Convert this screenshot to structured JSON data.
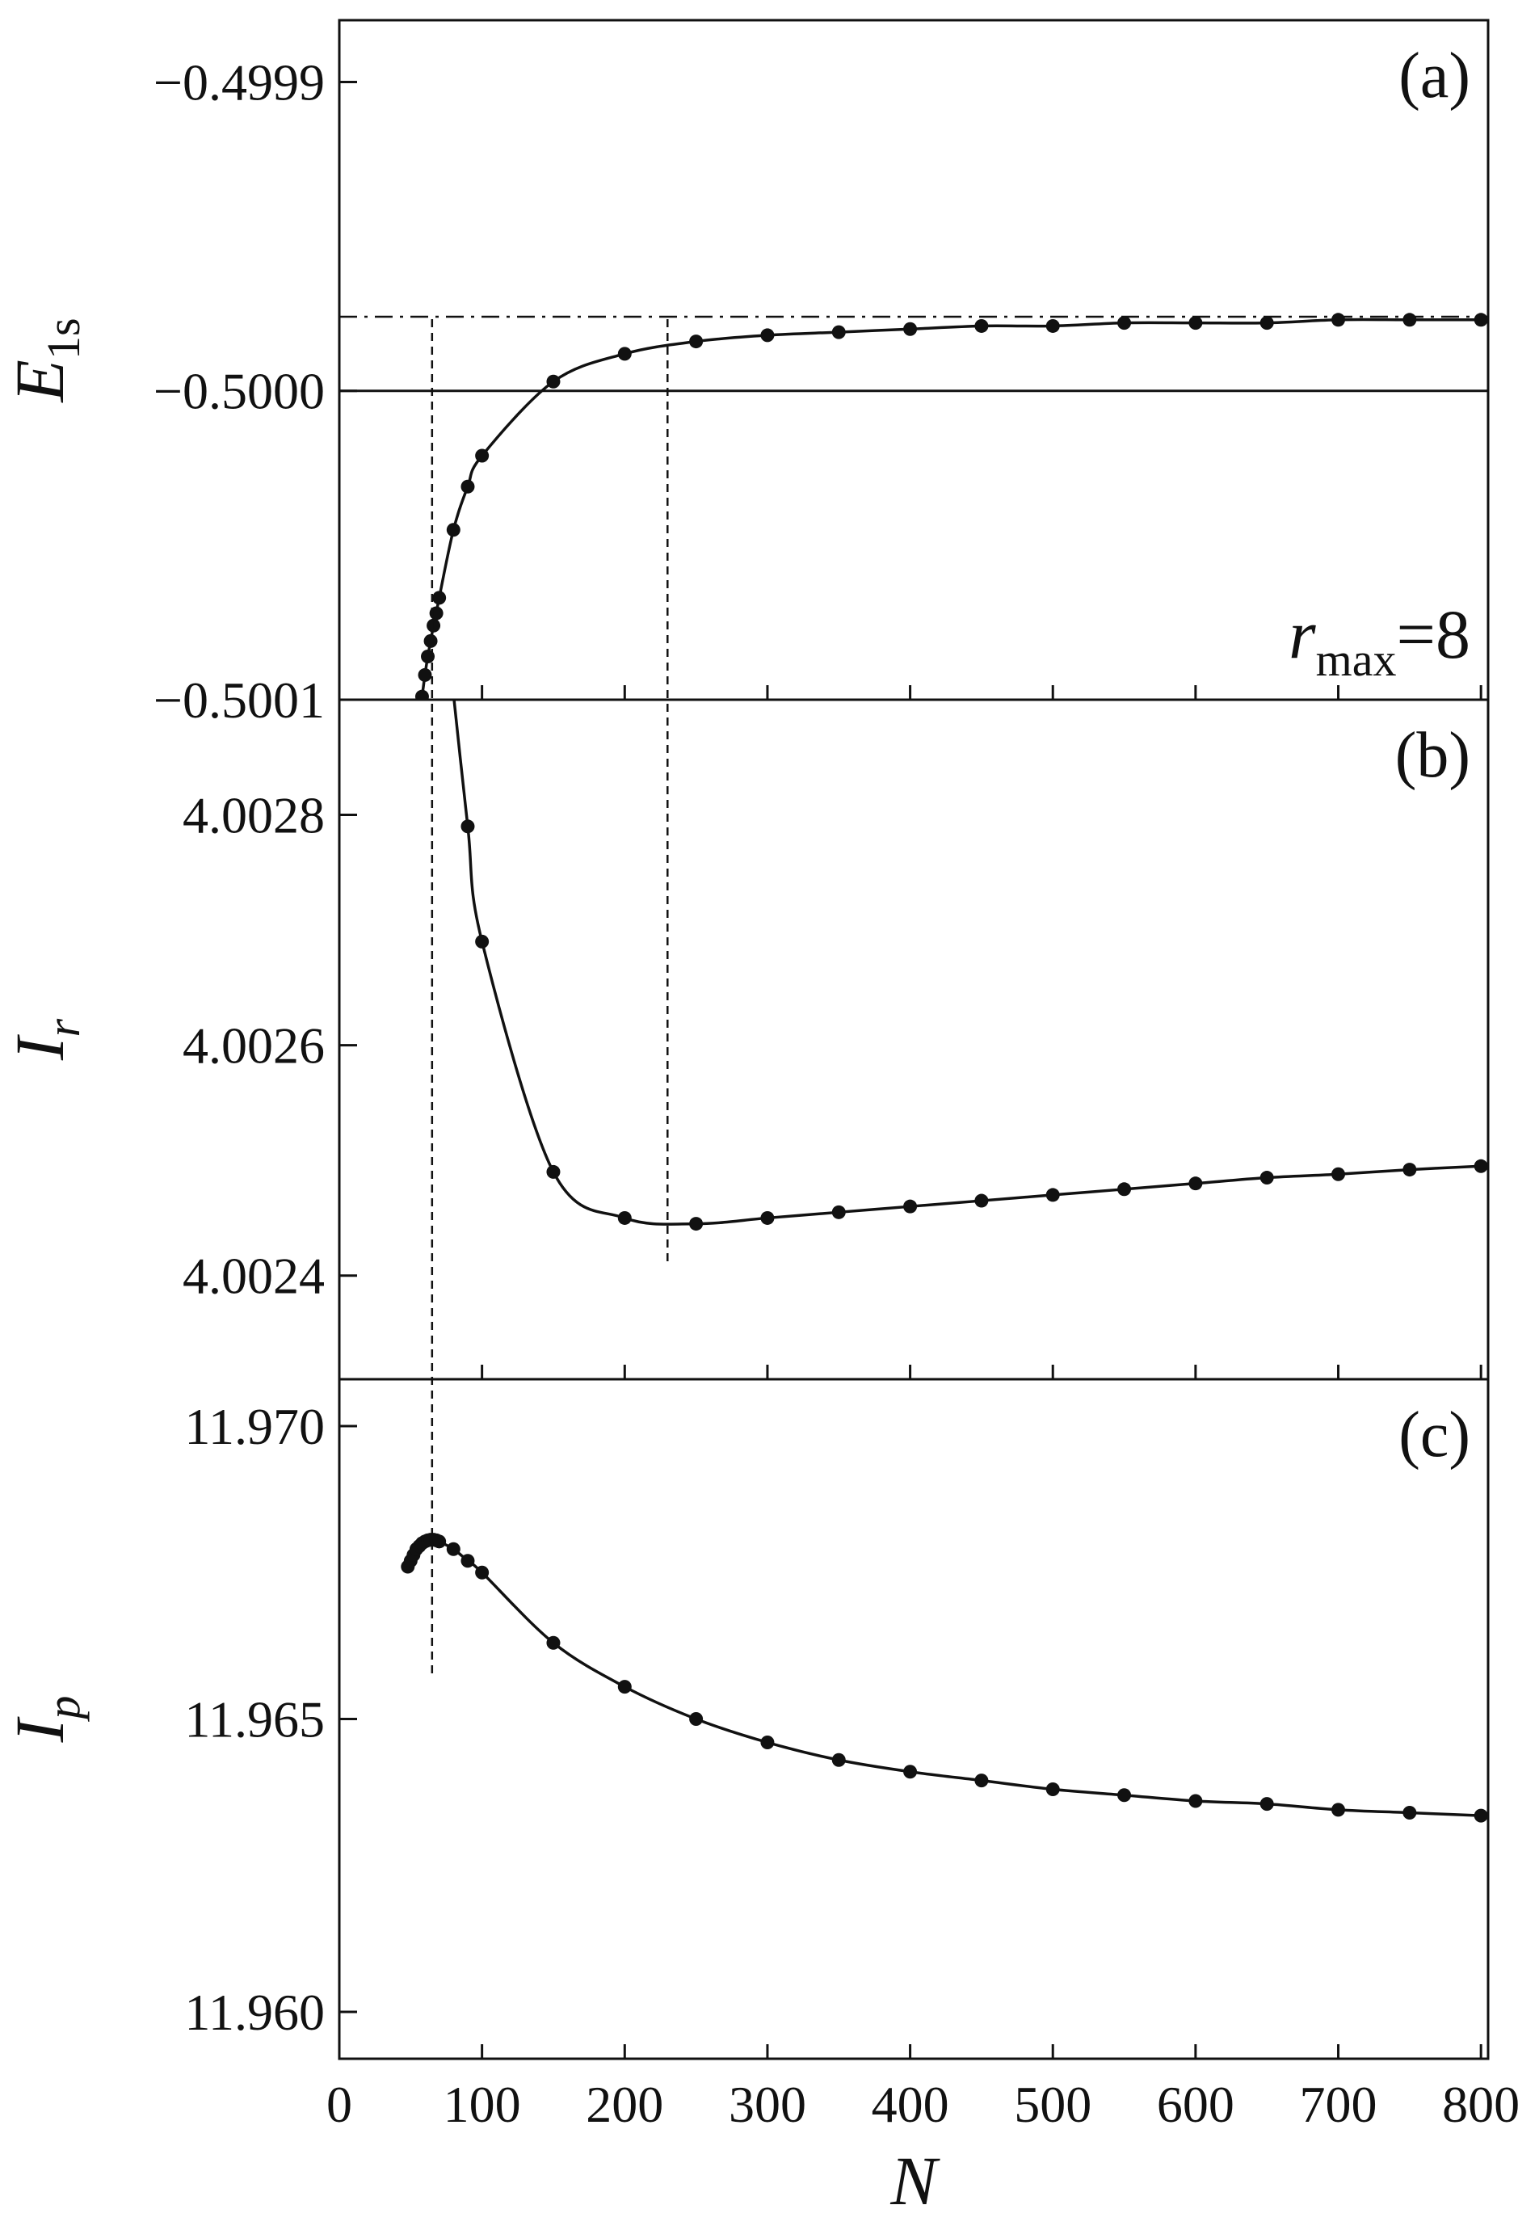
{
  "chart_data": {
    "type": "line",
    "shared_x_axis": {
      "label": "N",
      "xlim": [
        0,
        805
      ],
      "ticks": [
        0,
        100,
        200,
        300,
        400,
        500,
        600,
        700,
        800
      ]
    },
    "panels": [
      {
        "id": "a",
        "label": "(a)",
        "ylabel": "E",
        "ylabel_sub": "1s",
        "ylim": [
          -0.5001,
          -0.49988
        ],
        "yticks": [
          -0.4999,
          -0.5,
          -0.5001
        ],
        "ytick_labels": [
          "−0.4999",
          "−0.5000",
          "−0.5001"
        ],
        "annotation": {
          "main": "r",
          "sub": "max",
          "eq": "=8"
        },
        "reference_lines": [
          {
            "style": "solid",
            "y": -0.5
          },
          {
            "style": "dash-dot",
            "y": -0.499976
          }
        ],
        "series": [
          {
            "x": [
              58,
              60,
              62,
              64,
              66,
              68,
              70,
              80,
              90,
              100,
              150,
              200,
              250,
              300,
              350,
              400,
              450,
              500,
              550,
              600,
              650,
              700,
              750,
              800
            ],
            "y": [
              -0.500099,
              -0.500092,
              -0.500086,
              -0.500081,
              -0.500076,
              -0.500072,
              -0.500067,
              -0.500045,
              -0.500031,
              -0.500021,
              -0.499997,
              -0.499988,
              -0.499984,
              -0.499982,
              -0.499981,
              -0.49998,
              -0.499979,
              -0.499979,
              -0.499978,
              -0.499978,
              -0.499978,
              -0.499977,
              -0.499977,
              -0.499977
            ]
          }
        ]
      },
      {
        "id": "b",
        "label": "(b)",
        "ylabel": "I",
        "ylabel_sub": "r",
        "ylim": [
          4.00231,
          4.0029
        ],
        "yticks": [
          4.0028,
          4.0026,
          4.0024
        ],
        "ytick_labels": [
          "4.0028",
          "4.0026",
          "4.0024"
        ],
        "series": [
          {
            "x": [
              90,
              100,
              150,
              200,
              250,
              300,
              350,
              400,
              450,
              500,
              550,
              600,
              650,
              700,
              750,
              800
            ],
            "y": [
              4.00279,
              4.00269,
              4.00249,
              4.00245,
              4.002445,
              4.00245,
              4.002455,
              4.00246,
              4.002465,
              4.00247,
              4.002475,
              4.00248,
              4.002485,
              4.002488,
              4.002492,
              4.002495
            ]
          }
        ]
      },
      {
        "id": "c",
        "label": "(c)",
        "ylabel": "I",
        "ylabel_sub": "p",
        "ylim": [
          11.9592,
          11.9708
        ],
        "yticks": [
          11.97,
          11.965,
          11.96
        ],
        "ytick_labels": [
          "11.970",
          "11.965",
          "11.960"
        ],
        "series": [
          {
            "x": [
              48,
              50,
              52,
              54,
              56,
              58,
              60,
              62,
              64,
              66,
              68,
              70,
              80,
              90,
              100,
              150,
              200,
              250,
              300,
              350,
              400,
              450,
              500,
              550,
              600,
              650,
              700,
              750,
              800
            ],
            "y": [
              11.9676,
              11.9677,
              11.9678,
              11.9679,
              11.96795,
              11.968,
              11.96803,
              11.96805,
              11.96806,
              11.96806,
              11.96805,
              11.96803,
              11.9679,
              11.9677,
              11.9675,
              11.9663,
              11.96555,
              11.965,
              11.9646,
              11.9643,
              11.9641,
              11.96395,
              11.9638,
              11.9637,
              11.9636,
              11.96355,
              11.96345,
              11.9634,
              11.96335
            ]
          }
        ]
      }
    ],
    "vertical_lines": [
      {
        "style": "dashed",
        "x": 65,
        "panels": [
          "a",
          "b",
          "c"
        ]
      },
      {
        "style": "dashed",
        "x": 230,
        "panels": [
          "a",
          "b"
        ]
      }
    ]
  }
}
